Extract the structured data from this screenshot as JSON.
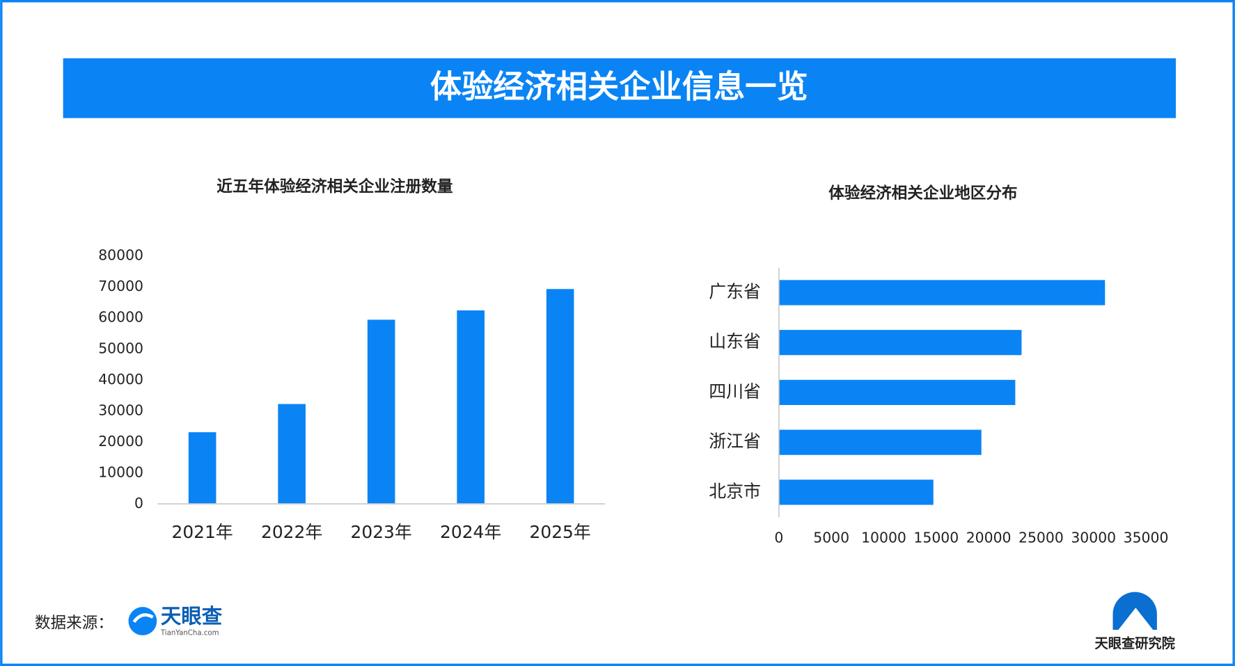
{
  "header": {
    "title": "体验经济相关企业信息一览"
  },
  "chart_data": [
    {
      "type": "bar",
      "title": "近五年体验经济相关企业注册数量",
      "categories": [
        "2021年",
        "2022年",
        "2023年",
        "2024年",
        "2025年"
      ],
      "values": [
        23100,
        32200,
        59400,
        62400,
        69300
      ],
      "color": "#0a84f5",
      "ylim": [
        0,
        80000
      ],
      "yticks": [
        0,
        10000,
        20000,
        30000,
        40000,
        50000,
        60000,
        70000,
        80000
      ],
      "grid": false
    },
    {
      "type": "barh",
      "title": "体验经济相关企业地区分布",
      "categories": [
        "广东省",
        "山东省",
        "四川省",
        "浙江省",
        "北京市"
      ],
      "values": [
        31100,
        23140,
        22540,
        19310,
        14730
      ],
      "color": "#0a84f5",
      "xlim": [
        0,
        35000
      ],
      "xticks": [
        0,
        5000,
        10000,
        15000,
        20000,
        25000,
        30000,
        35000
      ],
      "grid": false
    }
  ],
  "footer": {
    "source_label": "数据来源：",
    "logo_name": "天眼查",
    "logo_url": "TianYanCha.com",
    "institute": "天眼查研究院"
  }
}
